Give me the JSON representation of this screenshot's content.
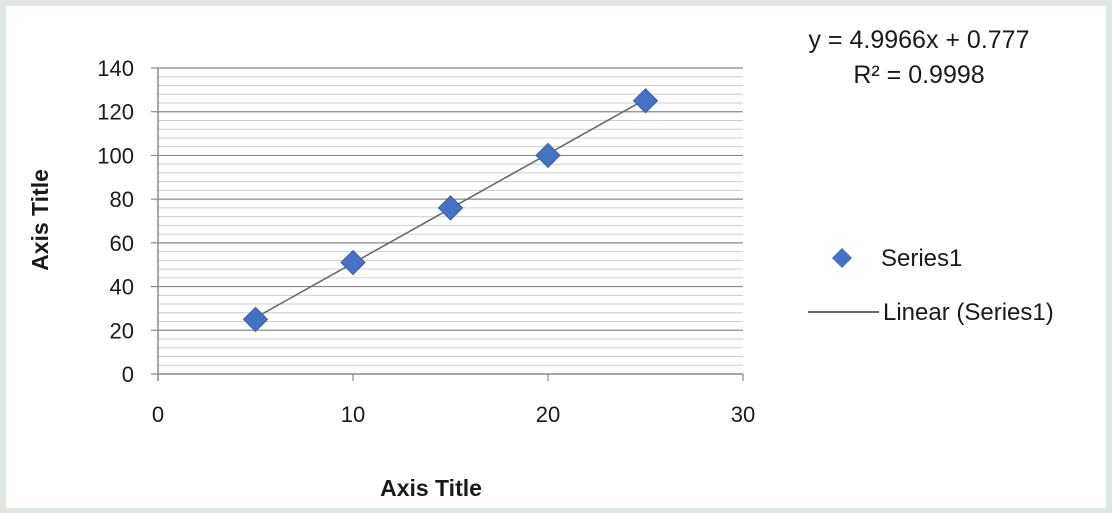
{
  "chart_data": {
    "type": "scatter",
    "x": [
      5,
      10,
      15,
      20,
      25
    ],
    "series": [
      {
        "name": "Series1",
        "values": [
          25,
          51,
          76,
          100,
          125
        ],
        "color": "#4472c4",
        "marker": "diamond"
      }
    ],
    "trendline": {
      "name": "Linear (Series1)",
      "kind": "linear",
      "slope": 4.9966,
      "intercept": 0.777,
      "color": "#6b6b6b"
    },
    "equation": "y = 4.9966x + 0.777",
    "r_squared": "R² = 0.9998",
    "xlabel": "Axis Title",
    "ylabel": "Axis Title",
    "xlim": [
      0,
      30
    ],
    "ylim": [
      0,
      140
    ],
    "x_ticks": [
      "0",
      "10",
      "20",
      "30"
    ],
    "y_ticks": [
      "0",
      "20",
      "40",
      "60",
      "80",
      "100",
      "120",
      "140"
    ],
    "grid": "horizontal major and minor",
    "legend_position": "right"
  }
}
